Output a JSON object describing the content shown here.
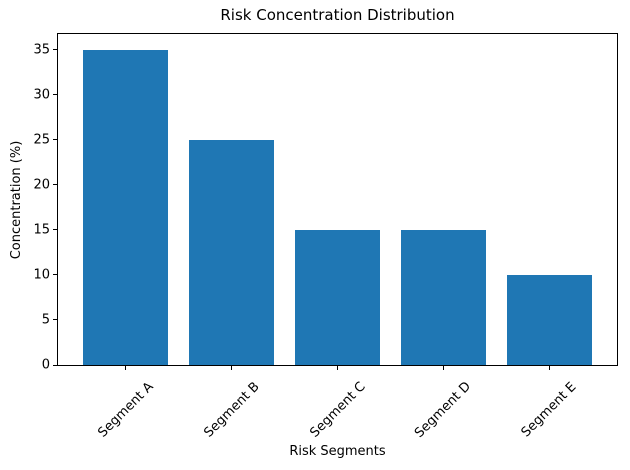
{
  "chart_data": {
    "type": "bar",
    "title": "Risk Concentration Distribution",
    "xlabel": "Risk Segments",
    "ylabel": "Concentration (%)",
    "categories": [
      "Segment A",
      "Segment B",
      "Segment C",
      "Segment D",
      "Segment E"
    ],
    "values": [
      35,
      25,
      15,
      15,
      10
    ],
    "yticks": [
      0,
      5,
      10,
      15,
      20,
      25,
      30,
      35
    ],
    "ylim": [
      0,
      36.75
    ],
    "xtick_rotation": 45,
    "grid": false,
    "legend_position": "none",
    "bar_color": "#1f77b4",
    "axis_color": "#000000",
    "text_color": "#000000",
    "background_color": "#ffffff"
  }
}
